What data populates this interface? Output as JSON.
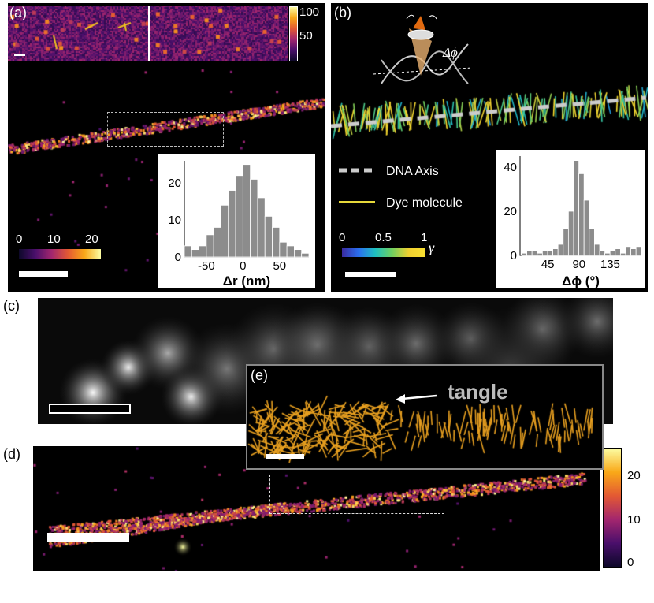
{
  "figure": {
    "panels": {
      "a": {
        "label": "(a)",
        "colorbar_top": {
          "ticks": [
            "100",
            "50"
          ]
        },
        "colorbar_bottom": {
          "ticks": [
            "0",
            "10",
            "20"
          ]
        },
        "inset_hist_label": "Δr (nm)",
        "icon_color": "#f0c020"
      },
      "b": {
        "label": "(b)",
        "cone_label": "Δϕ",
        "legend": {
          "dna_axis": "DNA Axis",
          "dye_molecule": "Dye molecule"
        },
        "colorbar": {
          "ticks": [
            "0",
            "0.5",
            "1"
          ],
          "symbol": "γ"
        },
        "inset_hist_label": "Δϕ (°)"
      },
      "c": {
        "label": "(c)"
      },
      "d": {
        "label": "(d)",
        "colorbar": {
          "ticks": [
            "20",
            "10",
            "0"
          ]
        }
      },
      "e": {
        "label": "(e)",
        "annotation": "tangle",
        "stick_color": "#e8a020"
      }
    }
  },
  "chart_data": [
    {
      "type": "bar",
      "panel": "a-inset",
      "xlabel": "Δr (nm)",
      "ylabel": "",
      "xticks": [
        -50,
        0,
        50
      ],
      "yticks": [
        0,
        10,
        20
      ],
      "ylim": [
        0,
        26
      ],
      "bin_width": 10,
      "bin_centers": [
        -75,
        -65,
        -55,
        -45,
        -35,
        -25,
        -15,
        -5,
        5,
        15,
        25,
        35,
        45,
        55,
        65,
        75,
        85
      ],
      "values": [
        3,
        2,
        3,
        6,
        8,
        14,
        18,
        22,
        25,
        21,
        16,
        11,
        8,
        4,
        3,
        2,
        1
      ]
    },
    {
      "type": "bar",
      "panel": "b-inset",
      "xlabel": "Δϕ (°)",
      "ylabel": "",
      "xticks": [
        45,
        90,
        135
      ],
      "yticks": [
        0,
        20,
        40
      ],
      "ylim": [
        0,
        45
      ],
      "bin_width": 7.5,
      "bin_centers": [
        11,
        18.5,
        26,
        33.5,
        41,
        48.5,
        56,
        63.5,
        71,
        78.5,
        86,
        93.5,
        101,
        108.5,
        116,
        123.5,
        131,
        138.5,
        146,
        153.5,
        161,
        168.5,
        176
      ],
      "values": [
        1,
        2,
        2,
        1,
        2,
        2,
        3,
        5,
        12,
        20,
        43,
        37,
        25,
        12,
        5,
        2,
        1,
        2,
        3,
        1,
        4,
        3,
        4
      ]
    }
  ]
}
